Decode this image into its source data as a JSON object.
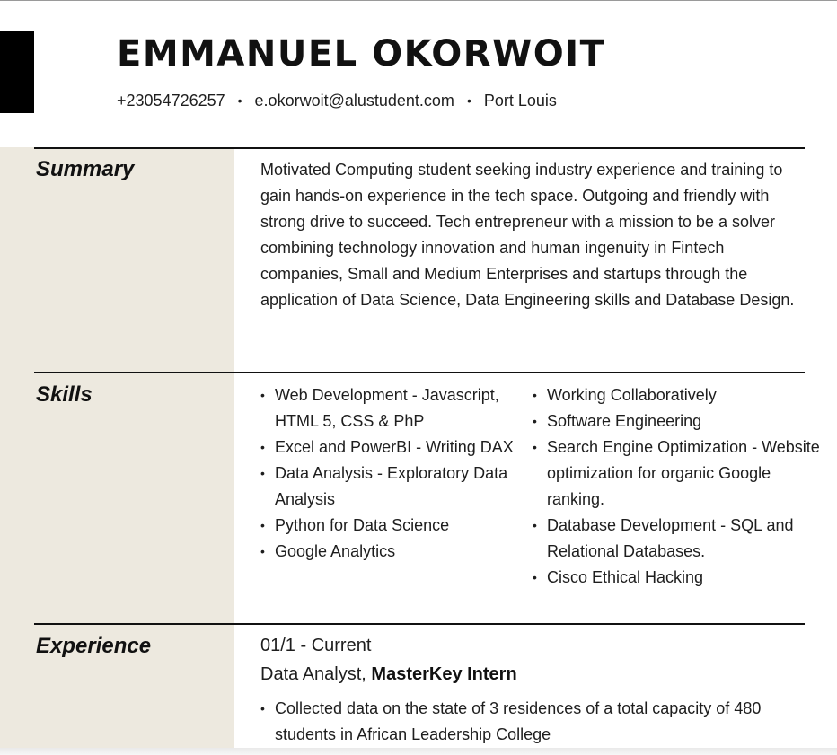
{
  "header": {
    "name": "EMMANUEL OKORWOIT",
    "phone": "+23054726257",
    "email": "e.okorwoit@alustudent.com",
    "location": "Port Louis",
    "separator": "•"
  },
  "summary": {
    "title": "Summary",
    "text": "Motivated Computing student seeking industry experience and training to gain hands-on experience in the tech space. Outgoing and friendly with strong drive to succeed. Tech entrepreneur with a mission to be a solver combining technology innovation and human ingenuity in Fintech companies, Small and Medium Enterprises and startups through the application of Data Science, Data Engineering skills and Database Design."
  },
  "skills": {
    "title": "Skills",
    "column1": [
      "Web Development - Javascript, HTML 5, CSS & PhP",
      "Excel and PowerBI - Writing DAX",
      "Data Analysis - Exploratory Data Analysis",
      "Python for Data Science",
      "Google Analytics"
    ],
    "column2": [
      "Working Collaboratively",
      "Software Engineering",
      "Search Engine Optimization - Website optimization for organic Google ranking.",
      "Database Development - SQL and Relational Databases.",
      "Cisco Ethical Hacking"
    ]
  },
  "experience": {
    "title": "Experience",
    "dates": "01/1 - Current",
    "role": "Data Analyst,",
    "company": "MasterKey Intern",
    "bullets": [
      "Collected data on the state of 3 residences of a total capacity of 480 students in African Leadership College"
    ]
  },
  "colors": {
    "sidebar": "#ede9df",
    "accent": "#000000",
    "text": "#1e1e1e"
  }
}
